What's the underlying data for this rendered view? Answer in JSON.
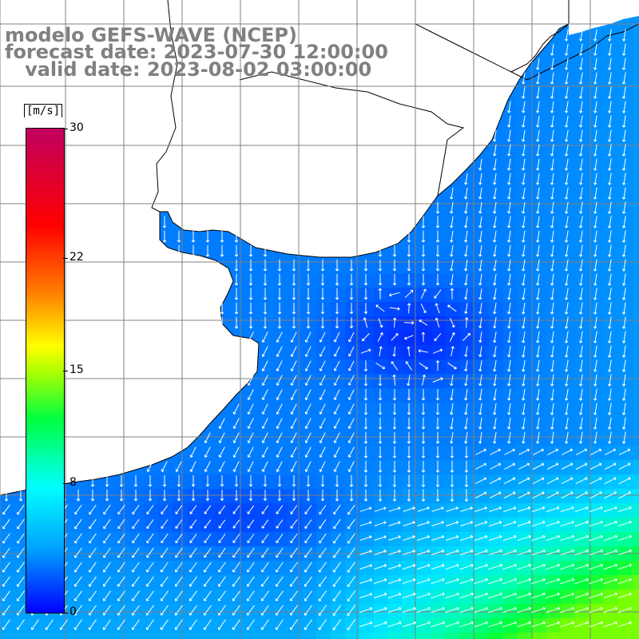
{
  "header": {
    "model": "modelo GEFS-WAVE (NCEP)",
    "forecast": "forecast date: 2023-07-30 12:00:00",
    "valid": "   valid date: 2023-08-02 03:00:00"
  },
  "colorbar": {
    "unit": "[m/s]",
    "ticks": [
      {
        "label": "30",
        "value": 30
      },
      {
        "label": "22",
        "value": 22
      },
      {
        "label": "15",
        "value": 15
      },
      {
        "label": "8",
        "value": 8
      },
      {
        "label": "0",
        "value": 0
      }
    ],
    "min": 0,
    "max": 30
  },
  "colors": {
    "land": "#ffffff",
    "grid": "#808080",
    "coast": "#000000",
    "vector": "#ffffff"
  }
}
